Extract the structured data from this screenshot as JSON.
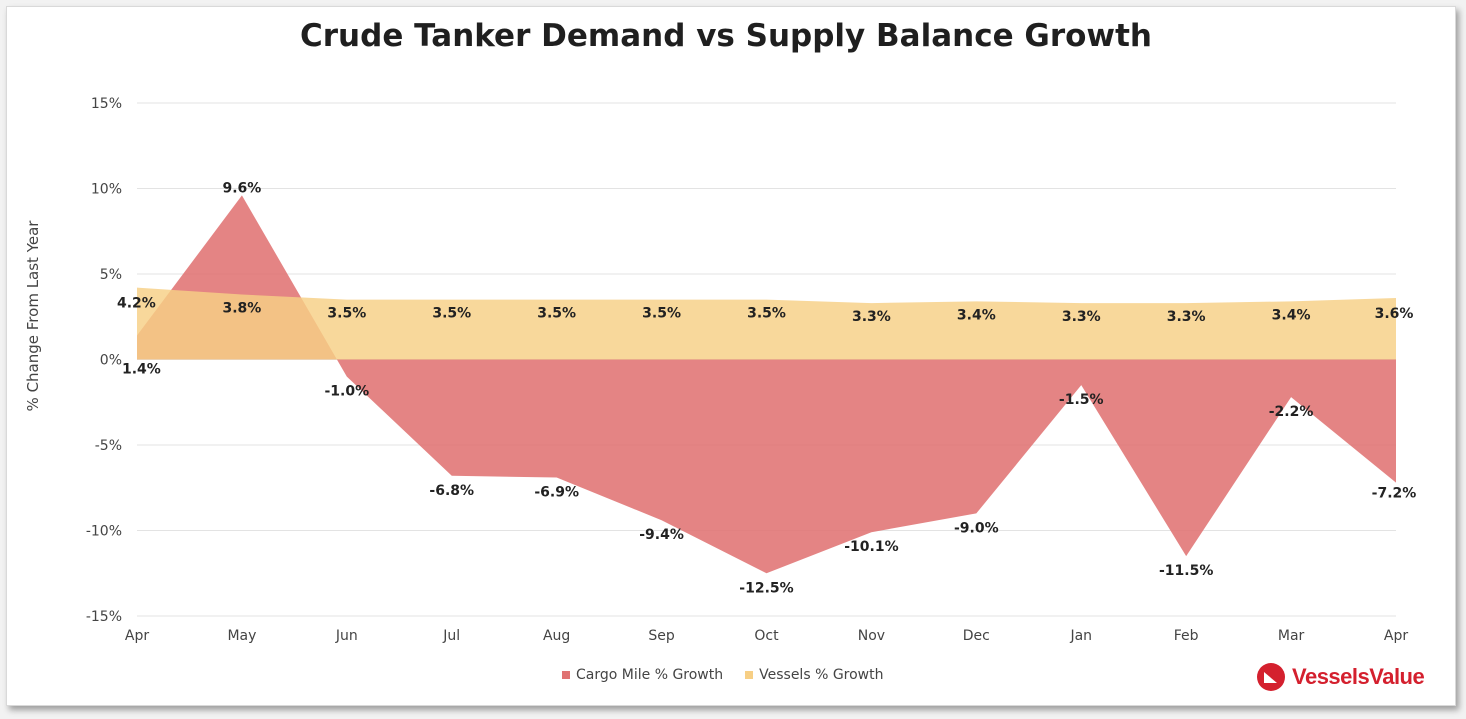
{
  "chart_data": {
    "type": "area",
    "title": "Crude Tanker Demand vs Supply Balance Growth",
    "ylabel": "% Change From Last Year",
    "xlabel": "",
    "ylim": [
      -15,
      15
    ],
    "yticks": [
      15,
      10,
      5,
      0,
      -5,
      -10,
      -15
    ],
    "ytick_labels": [
      "15%",
      "10%",
      "5%",
      "0%",
      "-5%",
      "-10%",
      "-15%"
    ],
    "categories": [
      "Apr",
      "May",
      "Jun",
      "Jul",
      "Aug",
      "Sep",
      "Oct",
      "Nov",
      "Dec",
      "Jan",
      "Feb",
      "Mar",
      "Apr"
    ],
    "grid": true,
    "legend_position": "bottom",
    "series": [
      {
        "name": "Cargo Mile % Growth",
        "color": "#e07373",
        "values": [
          1.4,
          9.6,
          -1.0,
          -6.8,
          -6.9,
          -9.4,
          -12.5,
          -10.1,
          -9.0,
          -1.5,
          -11.5,
          -2.2,
          -7.2
        ],
        "labels": [
          "1.4%",
          "9.6%",
          "-1.0%",
          "-6.8%",
          "-6.9%",
          "-9.4%",
          "-12.5%",
          "-10.1%",
          "-9.0%",
          "-1.5%",
          "-11.5%",
          "-2.2%",
          "-7.2%"
        ]
      },
      {
        "name": "Vessels % Growth",
        "color": "#f7cf85",
        "values": [
          4.2,
          3.8,
          3.5,
          3.5,
          3.5,
          3.5,
          3.5,
          3.3,
          3.4,
          3.3,
          3.3,
          3.4,
          3.6
        ],
        "labels": [
          "4.2%",
          "3.8%",
          "3.5%",
          "3.5%",
          "3.5%",
          "3.5%",
          "3.5%",
          "3.3%",
          "3.4%",
          "3.3%",
          "3.3%",
          "3.4%",
          "3.6%"
        ]
      }
    ]
  },
  "legend": {
    "items": [
      {
        "label": "Cargo Mile % Growth",
        "color": "#e07373"
      },
      {
        "label": "Vessels % Growth",
        "color": "#f7cf85"
      }
    ]
  },
  "logo": {
    "text": "VesselsValue",
    "icon": "vesselsvalue-logo-icon",
    "color": "#d4202e"
  }
}
